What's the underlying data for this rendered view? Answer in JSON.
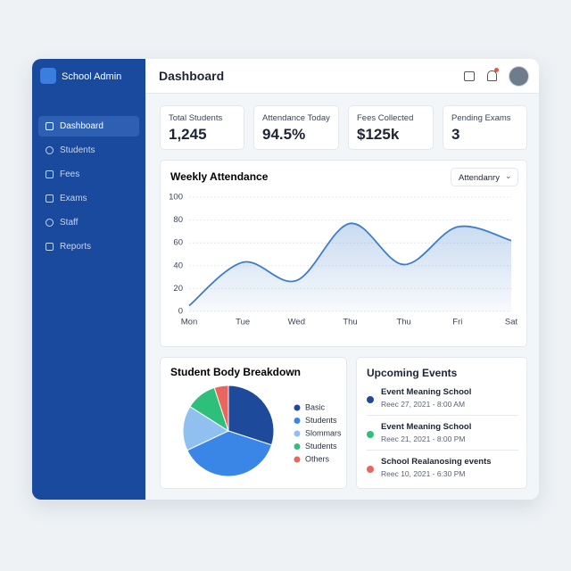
{
  "sidebar": {
    "brand": "School Admin",
    "nav": [
      "Dashboard",
      "Students",
      "Fees",
      "Exams",
      "Staff",
      "Reports"
    ]
  },
  "header": {
    "title": "Dashboard"
  },
  "stats": [
    {
      "label": "Total Students",
      "value": "1,245"
    },
    {
      "label": "Attendance Today",
      "value": "94.5%"
    },
    {
      "label": "Fees Collected",
      "value": "$125k"
    },
    {
      "label": "Pending Exams",
      "value": "3"
    }
  ],
  "chart_data": [
    {
      "type": "line",
      "title": "Weekly Attendance",
      "filter": "Attendanry",
      "categories": [
        "Mon",
        "Tue",
        "Wed",
        "Thu",
        "Thu",
        "Fri",
        "Sat"
      ],
      "series": [
        {
          "name": "Attendance",
          "color": "#3d7cc9",
          "values": [
            5,
            43,
            27,
            77,
            41,
            74,
            62
          ]
        }
      ],
      "ylim": [
        0,
        100
      ],
      "yticks": [
        0,
        20,
        40,
        60,
        80,
        100
      ],
      "grid": true
    },
    {
      "type": "pie",
      "title": "Student Body Breakdown",
      "categories": [
        "Basic",
        "Students",
        "Slommars",
        "Students",
        "Others"
      ],
      "values": [
        30,
        38,
        16,
        11,
        5
      ],
      "colors": [
        "#1d4a9a",
        "#3a86e6",
        "#8fc0ef",
        "#2ebf7a",
        "#e8665c"
      ]
    }
  ],
  "events": {
    "title": "Upcoming Events",
    "items": [
      {
        "name": "Event Meaning School",
        "date": "Reec 27, 2021 - 8:00 AM",
        "color": "#1d4a9a"
      },
      {
        "name": "Event Meaning School",
        "date": "Reec 21, 2021 - 8:00 PM",
        "color": "#2ebf7a"
      },
      {
        "name": "School Realanosing events",
        "date": "Reec 10, 2021 - 6:30 PM",
        "color": "#e8665c"
      }
    ]
  }
}
